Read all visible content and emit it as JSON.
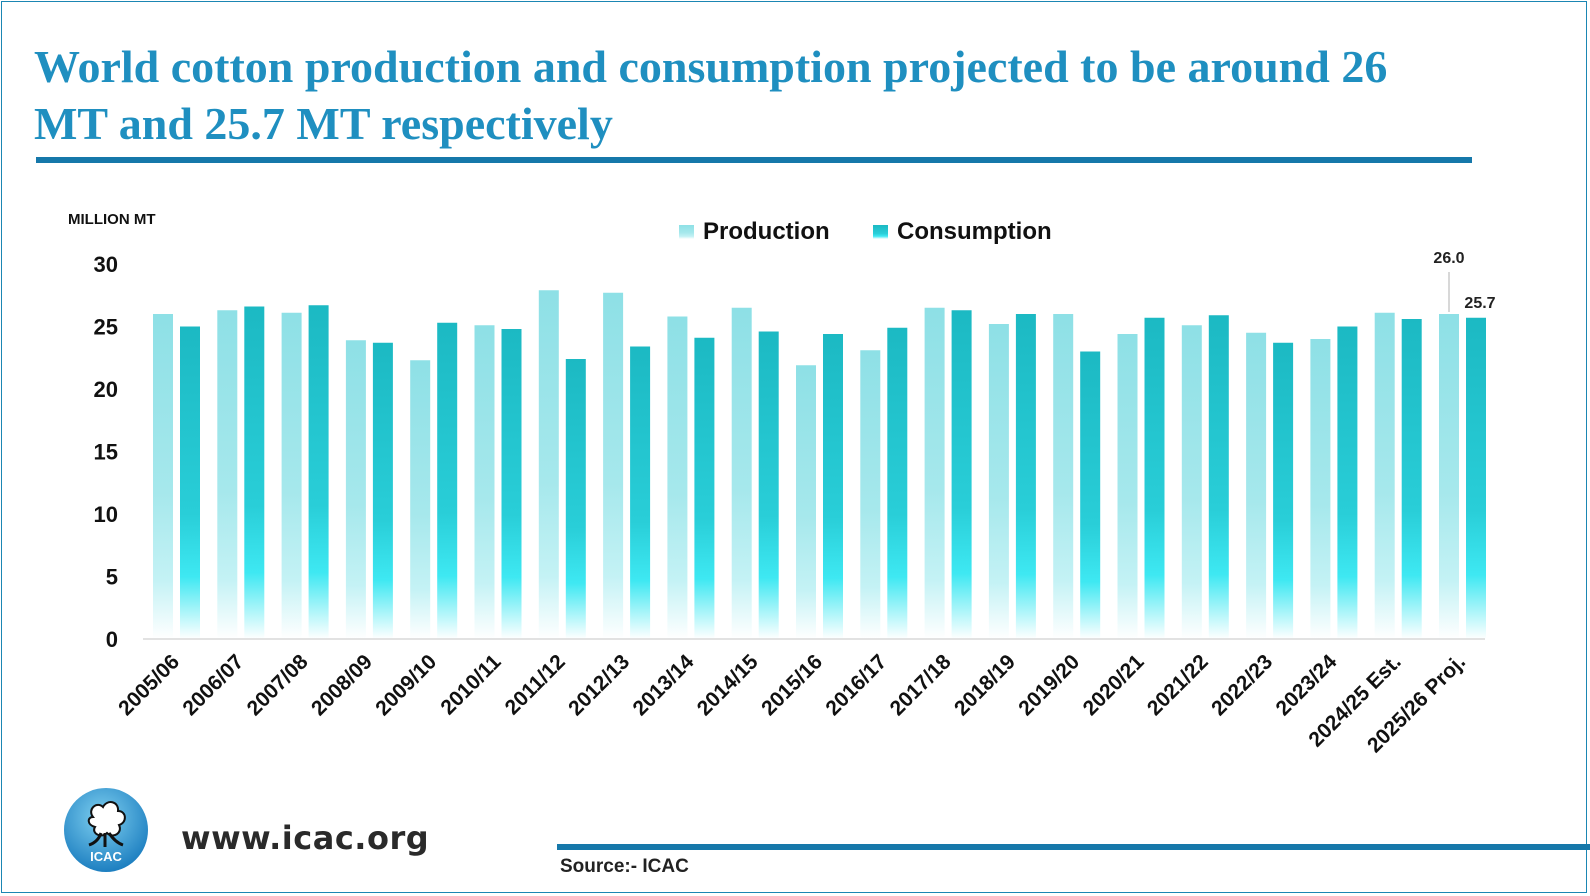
{
  "title": "World cotton production and consumption projected to be around 26 MT and 25.7 MT respectively",
  "website": "www.icac.org",
  "source": "Source:- ICAC",
  "logo": {
    "text": "ICAC",
    "icon": "cotton-boll-icon"
  },
  "colors": {
    "title": "#1f8fc0",
    "rule": "#1678aa",
    "production": "#8ee0e6",
    "consumption": "#20bcc6"
  },
  "chart_data": {
    "type": "bar",
    "ylabel": "MILLION MT",
    "ylim": [
      0,
      30
    ],
    "yticks": [
      0,
      5,
      10,
      15,
      20,
      25,
      30
    ],
    "legend": "top-center",
    "grid": false,
    "categories": [
      "2005/06",
      "2006/07",
      "2007/08",
      "2008/09",
      "2009/10",
      "2010/11",
      "2011/12",
      "2012/13",
      "2013/14",
      "2014/15",
      "2015/16",
      "2016/17",
      "2017/18",
      "2018/19",
      "2019/20",
      "2020/21",
      "2021/22",
      "2022/23",
      "2023/24",
      "2024/25 Est.",
      "2025/26 Proj."
    ],
    "series": [
      {
        "name": "Production",
        "values": [
          26.0,
          26.3,
          26.1,
          23.9,
          22.3,
          25.1,
          27.9,
          27.7,
          25.8,
          26.5,
          21.9,
          23.1,
          26.5,
          25.2,
          26.0,
          24.4,
          25.1,
          24.5,
          24.0,
          26.1,
          26.0
        ]
      },
      {
        "name": "Consumption",
        "values": [
          25.0,
          26.6,
          26.7,
          23.7,
          25.3,
          24.8,
          22.4,
          23.4,
          24.1,
          24.6,
          24.4,
          24.9,
          26.3,
          26.0,
          23.0,
          25.7,
          25.9,
          23.7,
          25.0,
          25.6,
          25.7
        ]
      }
    ],
    "annotations": [
      {
        "category": "2025/26 Proj.",
        "series": "Production",
        "label": "26.0"
      },
      {
        "category": "2025/26 Proj.",
        "series": "Consumption",
        "label": "25.7"
      }
    ]
  }
}
